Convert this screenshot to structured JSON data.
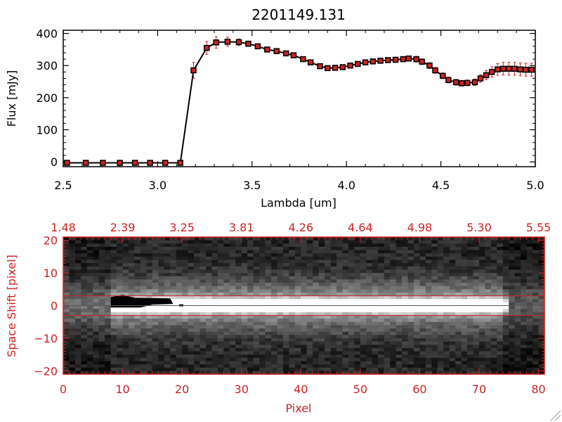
{
  "chart_data": [
    {
      "type": "line",
      "title": "2201149.131",
      "xlabel": "Lambda [um]",
      "ylabel": "Flux [mJy]",
      "xlim": [
        2.5,
        5.0
      ],
      "ylim": [
        -15,
        410
      ],
      "x_ticks": [
        2.5,
        3.0,
        3.5,
        4.0,
        4.5,
        5.0
      ],
      "x_tick_labels": [
        "2.5",
        "3.0",
        "3.5",
        "4.0",
        "4.5",
        "5.0"
      ],
      "y_ticks": [
        0,
        100,
        200,
        300,
        400
      ],
      "y_tick_labels": [
        "0",
        "100",
        "200",
        "300",
        "400"
      ],
      "line_color": "#000000",
      "marker_color": "#cc2222",
      "series": [
        {
          "x": [
            2.52,
            2.62,
            2.71,
            2.8,
            2.88,
            2.96,
            3.04,
            3.12,
            3.19,
            3.26,
            3.31,
            3.37,
            3.43,
            3.48,
            3.53,
            3.58,
            3.63,
            3.68,
            3.72,
            3.77,
            3.81,
            3.86,
            3.9,
            3.94,
            3.98,
            4.02,
            4.06,
            4.1,
            4.14,
            4.18,
            4.22,
            4.26,
            4.3,
            4.33,
            4.37,
            4.4,
            4.44,
            4.47,
            4.51,
            4.54,
            4.58,
            4.61,
            4.64,
            4.68,
            4.71,
            4.74,
            4.77,
            4.8,
            4.83,
            4.86,
            4.89,
            4.92,
            4.95,
            4.98
          ],
          "y": [
            -3,
            -3,
            -3,
            -3,
            -3,
            -3,
            -3,
            -3,
            285,
            355,
            372,
            374,
            373,
            368,
            360,
            350,
            345,
            338,
            332,
            320,
            310,
            298,
            292,
            293,
            295,
            300,
            305,
            310,
            313,
            315,
            317,
            318,
            320,
            322,
            320,
            312,
            300,
            285,
            268,
            255,
            248,
            245,
            246,
            248,
            260,
            270,
            280,
            288,
            290,
            290,
            290,
            288,
            287,
            287
          ],
          "err": [
            2,
            2,
            2,
            2,
            2,
            2,
            2,
            2,
            25,
            20,
            18,
            14,
            10,
            8,
            7,
            7,
            7,
            7,
            7,
            7,
            7,
            7,
            7,
            7,
            7,
            7,
            7,
            7,
            7,
            7,
            7,
            8,
            8,
            8,
            9,
            9,
            9,
            9,
            9,
            9,
            9,
            9,
            9,
            10,
            12,
            14,
            16,
            18,
            20,
            20,
            20,
            20,
            20,
            20
          ]
        }
      ]
    },
    {
      "type": "heatmap",
      "xlabel": "Pixel",
      "ylabel": "Space Shift [pixel]",
      "xlim": [
        0,
        81
      ],
      "ylim": [
        -21,
        21
      ],
      "x_ticks": [
        0,
        10,
        20,
        30,
        40,
        50,
        60,
        70,
        80
      ],
      "x_tick_labels": [
        "0",
        "10",
        "20",
        "30",
        "40",
        "50",
        "60",
        "70",
        "80"
      ],
      "y_ticks": [
        -20,
        -10,
        0,
        10,
        20
      ],
      "y_tick_labels": [
        "−20",
        "−10",
        "0",
        "10",
        "20"
      ],
      "top_axis_labels": [
        "1.48",
        "2.39",
        "3.25",
        "3.81",
        "4.26",
        "4.64",
        "4.98",
        "5.30",
        "5.55"
      ],
      "aperture_lines": [
        3,
        -3
      ],
      "axis_color": "#cc2222"
    }
  ]
}
